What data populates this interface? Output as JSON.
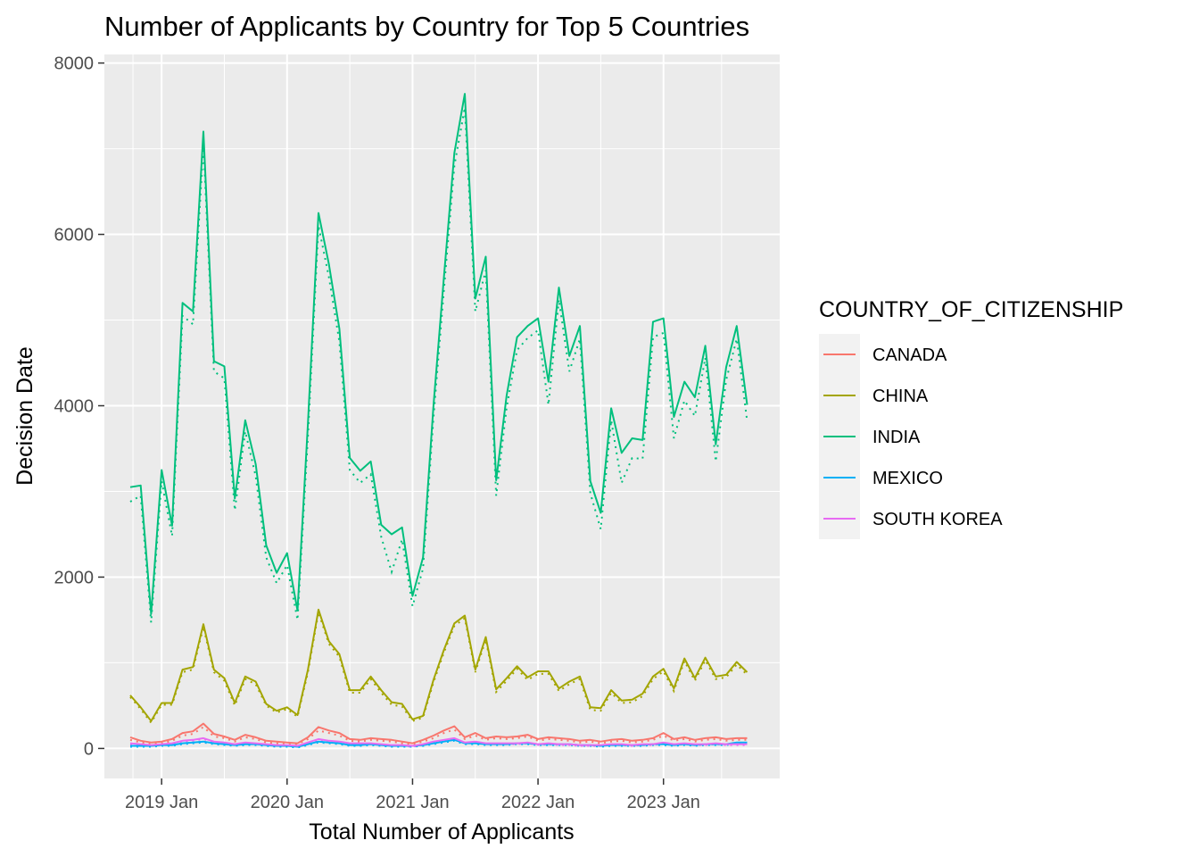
{
  "chart_data": {
    "type": "line",
    "title": "Number of Applicants by Country for Top 5 Countries",
    "xlabel": "Total Number of Applicants",
    "ylabel": "Decision Date",
    "x_ticks": [
      "2019 Jan",
      "2020 Jan",
      "2021 Jan",
      "2022 Jan",
      "2023 Jan"
    ],
    "y_ticks": [
      "0",
      "2000",
      "4000",
      "6000",
      "8000"
    ],
    "ylim": [
      -350,
      8100
    ],
    "grid": true,
    "background": "#EBEBEB",
    "legend": {
      "title": "COUNTRY_OF_CITIZENSHIP",
      "position": "right"
    },
    "x": [
      "2018-10",
      "2018-11",
      "2018-12",
      "2019-01",
      "2019-02",
      "2019-03",
      "2019-04",
      "2019-05",
      "2019-06",
      "2019-07",
      "2019-08",
      "2019-09",
      "2019-10",
      "2019-11",
      "2019-12",
      "2020-01",
      "2020-02",
      "2020-03",
      "2020-04",
      "2020-05",
      "2020-06",
      "2020-07",
      "2020-08",
      "2020-09",
      "2020-10",
      "2020-11",
      "2020-12",
      "2021-01",
      "2021-02",
      "2021-03",
      "2021-04",
      "2021-05",
      "2021-06",
      "2021-07",
      "2021-08",
      "2021-09",
      "2021-10",
      "2021-11",
      "2021-12",
      "2022-01",
      "2022-02",
      "2022-03",
      "2022-04",
      "2022-05",
      "2022-06",
      "2022-07",
      "2022-08",
      "2022-09",
      "2022-10",
      "2022-11",
      "2022-12",
      "2023-01",
      "2023-02",
      "2023-03",
      "2023-04",
      "2023-05",
      "2023-06",
      "2023-07",
      "2023-08",
      "2023-09"
    ],
    "series": [
      {
        "name": "CANADA",
        "color": "#F8766D",
        "values": [
          130,
          90,
          70,
          80,
          110,
          180,
          200,
          290,
          170,
          140,
          100,
          160,
          130,
          90,
          80,
          70,
          60,
          130,
          250,
          210,
          180,
          110,
          100,
          120,
          110,
          100,
          80,
          60,
          100,
          150,
          210,
          260,
          130,
          180,
          120,
          140,
          130,
          140,
          160,
          110,
          130,
          120,
          110,
          90,
          100,
          80,
          100,
          110,
          90,
          100,
          120,
          180,
          110,
          130,
          100,
          120,
          130,
          110,
          120,
          120
        ],
        "values_dotted": [
          100,
          70,
          60,
          60,
          90,
          150,
          170,
          250,
          140,
          120,
          80,
          130,
          110,
          70,
          60,
          60,
          50,
          110,
          210,
          180,
          150,
          90,
          80,
          100,
          90,
          80,
          60,
          50,
          80,
          120,
          180,
          220,
          110,
          150,
          100,
          120,
          110,
          120,
          140,
          90,
          110,
          100,
          90,
          70,
          80,
          60,
          80,
          90,
          70,
          80,
          100,
          150,
          90,
          110,
          80,
          100,
          110,
          90,
          100,
          100
        ]
      },
      {
        "name": "CHINA",
        "color": "#A3A500",
        "values": [
          620,
          480,
          320,
          530,
          530,
          920,
          950,
          1450,
          920,
          820,
          530,
          840,
          780,
          520,
          440,
          480,
          390,
          920,
          1620,
          1250,
          1100,
          680,
          680,
          840,
          680,
          540,
          520,
          340,
          380,
          800,
          1150,
          1460,
          1550,
          920,
          1300,
          690,
          820,
          960,
          830,
          900,
          900,
          700,
          780,
          840,
          480,
          470,
          680,
          560,
          570,
          640,
          840,
          930,
          700,
          1050,
          820,
          1060,
          840,
          860,
          1010,
          890
        ],
        "values_dotted": [
          600,
          460,
          300,
          510,
          510,
          890,
          920,
          1420,
          890,
          790,
          500,
          810,
          750,
          500,
          420,
          460,
          370,
          890,
          1590,
          1220,
          1070,
          650,
          650,
          810,
          650,
          510,
          490,
          320,
          360,
          770,
          1120,
          1430,
          1520,
          890,
          1270,
          660,
          790,
          930,
          800,
          870,
          870,
          670,
          750,
          810,
          450,
          440,
          650,
          530,
          540,
          610,
          810,
          900,
          670,
          1020,
          790,
          1030,
          810,
          830,
          980,
          860
        ]
      },
      {
        "name": "INDIA",
        "color": "#00BF7D",
        "values": [
          3050,
          3070,
          1570,
          3250,
          2600,
          5200,
          5100,
          7200,
          4520,
          4460,
          2920,
          3830,
          3320,
          2370,
          2050,
          2280,
          1610,
          3800,
          6250,
          5650,
          4900,
          3390,
          3240,
          3350,
          2610,
          2500,
          2580,
          1780,
          2230,
          4000,
          5500,
          6950,
          7640,
          5250,
          5740,
          3130,
          4120,
          4800,
          4930,
          5020,
          4280,
          5380,
          4580,
          4930,
          3120,
          2750,
          3970,
          3450,
          3620,
          3600,
          4980,
          5020,
          3870,
          4280,
          4100,
          4700,
          3550,
          4450,
          4930,
          4010
        ],
        "values_dotted": [
          2880,
          2950,
          1470,
          3120,
          2480,
          5050,
          4950,
          7050,
          4400,
          4320,
          2780,
          3700,
          3180,
          2230,
          1930,
          2140,
          1500,
          3650,
          6100,
          5500,
          4750,
          3250,
          3100,
          3200,
          2470,
          2060,
          2440,
          1660,
          2100,
          3860,
          5350,
          6800,
          7480,
          5100,
          5580,
          2950,
          3980,
          4650,
          4790,
          4880,
          4010,
          5240,
          4400,
          4780,
          2980,
          2560,
          3830,
          3100,
          3390,
          3380,
          4800,
          4850,
          3620,
          4060,
          3880,
          4560,
          3350,
          4300,
          4780,
          3820
        ]
      },
      {
        "name": "MEXICO",
        "color": "#00B0F6",
        "values": [
          30,
          30,
          30,
          40,
          40,
          60,
          70,
          80,
          60,
          50,
          40,
          50,
          50,
          40,
          30,
          30,
          20,
          50,
          80,
          70,
          60,
          40,
          40,
          50,
          40,
          30,
          30,
          30,
          40,
          60,
          80,
          100,
          60,
          60,
          50,
          50,
          50,
          60,
          60,
          50,
          50,
          50,
          50,
          40,
          40,
          30,
          40,
          40,
          40,
          40,
          50,
          50,
          40,
          50,
          40,
          50,
          50,
          50,
          70,
          70
        ],
        "values_dotted": [
          20,
          20,
          20,
          30,
          30,
          50,
          60,
          70,
          50,
          40,
          30,
          40,
          40,
          30,
          20,
          20,
          10,
          40,
          70,
          60,
          50,
          30,
          30,
          40,
          30,
          20,
          20,
          20,
          30,
          50,
          70,
          90,
          50,
          50,
          40,
          40,
          40,
          50,
          50,
          40,
          40,
          40,
          40,
          30,
          30,
          20,
          30,
          30,
          30,
          30,
          40,
          40,
          30,
          40,
          30,
          40,
          40,
          40,
          60,
          60
        ]
      },
      {
        "name": "SOUTH KOREA",
        "color": "#E76BF3",
        "values": [
          60,
          50,
          40,
          50,
          60,
          90,
          100,
          120,
          80,
          70,
          50,
          70,
          60,
          50,
          40,
          40,
          30,
          70,
          110,
          90,
          80,
          60,
          60,
          60,
          50,
          40,
          40,
          30,
          50,
          80,
          100,
          120,
          70,
          80,
          60,
          60,
          60,
          60,
          70,
          50,
          60,
          50,
          50,
          40,
          40,
          40,
          50,
          50,
          40,
          50,
          50,
          70,
          50,
          60,
          50,
          50,
          60,
          50,
          50,
          50
        ],
        "values_dotted": [
          50,
          40,
          30,
          40,
          50,
          80,
          90,
          110,
          70,
          60,
          40,
          60,
          50,
          40,
          30,
          30,
          20,
          60,
          100,
          80,
          70,
          50,
          50,
          50,
          40,
          30,
          30,
          20,
          40,
          70,
          90,
          110,
          60,
          70,
          50,
          50,
          50,
          50,
          60,
          40,
          50,
          40,
          40,
          30,
          30,
          30,
          40,
          40,
          30,
          40,
          40,
          60,
          40,
          50,
          40,
          40,
          50,
          40,
          40,
          40
        ]
      }
    ]
  }
}
